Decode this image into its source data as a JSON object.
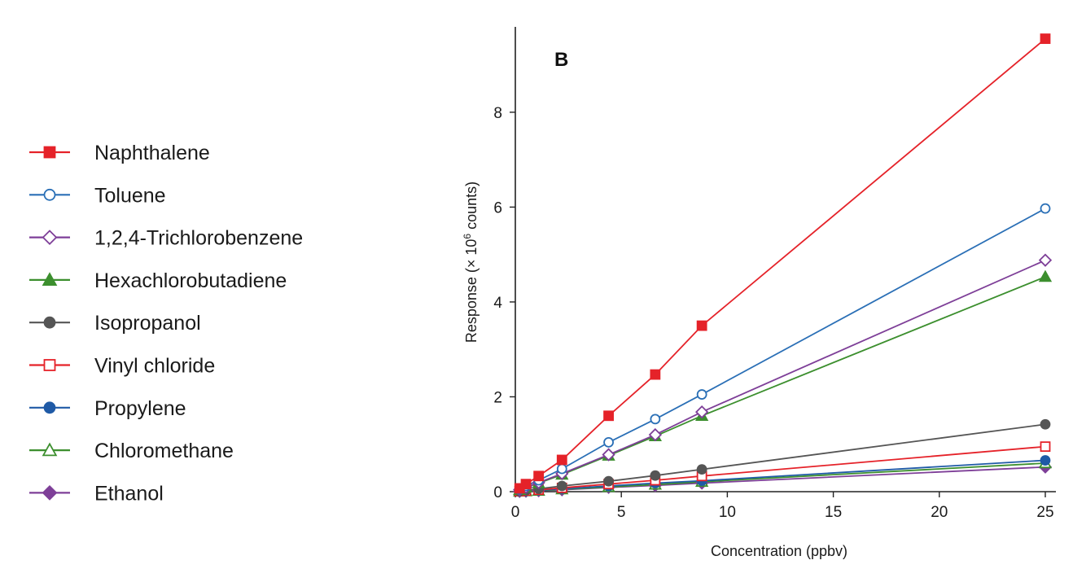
{
  "chart_data": {
    "type": "line",
    "panel_label": "B",
    "xlabel": "Concentration (ppbv)",
    "ylabel_main": "Response (× 10",
    "ylabel_sup": "6",
    "ylabel_tail": " counts)",
    "xlim": [
      0,
      25.5
    ],
    "ylim": [
      0,
      9.8
    ],
    "xticks": [
      0,
      5,
      10,
      15,
      20,
      25
    ],
    "yticks": [
      0,
      2,
      4,
      6,
      8
    ],
    "x": [
      0.2,
      0.5,
      1.1,
      2.2,
      4.4,
      6.6,
      8.8,
      25
    ],
    "series": [
      {
        "name": "Naphthalene",
        "color": "#e52229",
        "marker": "square",
        "filled": true,
        "values": [
          0.07,
          0.16,
          0.33,
          0.67,
          1.6,
          2.47,
          3.5,
          9.55
        ]
      },
      {
        "name": "Toluene",
        "color": "#2a6fb6",
        "marker": "circle",
        "filled": false,
        "values": [
          0.05,
          0.12,
          0.24,
          0.48,
          1.04,
          1.53,
          2.05,
          5.97
        ]
      },
      {
        "name": "1,2,4-Trichlorobenzene",
        "color": "#7e3f98",
        "marker": "diamond",
        "filled": false,
        "values": [
          0.04,
          0.09,
          0.19,
          0.38,
          0.78,
          1.2,
          1.68,
          4.88
        ]
      },
      {
        "name": "Hexachlorobutadiene",
        "color": "#3c8f2e",
        "marker": "triangle",
        "filled": true,
        "values": [
          0.04,
          0.09,
          0.18,
          0.36,
          0.76,
          1.17,
          1.6,
          4.53
        ]
      },
      {
        "name": "Isopropanol",
        "color": "#555555",
        "marker": "circle",
        "filled": true,
        "values": [
          0.01,
          0.03,
          0.06,
          0.12,
          0.22,
          0.34,
          0.47,
          1.42
        ]
      },
      {
        "name": "Vinyl chloride",
        "color": "#e52229",
        "marker": "square",
        "filled": false,
        "values": [
          0.01,
          0.02,
          0.04,
          0.08,
          0.16,
          0.24,
          0.33,
          0.95
        ]
      },
      {
        "name": "Propylene",
        "color": "#1f5aa6",
        "marker": "circle",
        "filled": true,
        "values": [
          0.01,
          0.01,
          0.03,
          0.06,
          0.12,
          0.18,
          0.23,
          0.66
        ]
      },
      {
        "name": "Chloromethane",
        "color": "#3c8f2e",
        "marker": "triangle",
        "filled": false,
        "values": [
          0.005,
          0.01,
          0.02,
          0.05,
          0.1,
          0.15,
          0.21,
          0.6
        ]
      },
      {
        "name": "Ethanol",
        "color": "#7e3f98",
        "marker": "diamond",
        "filled": true,
        "values": [
          0.005,
          0.01,
          0.02,
          0.04,
          0.09,
          0.13,
          0.18,
          0.52
        ]
      }
    ]
  }
}
